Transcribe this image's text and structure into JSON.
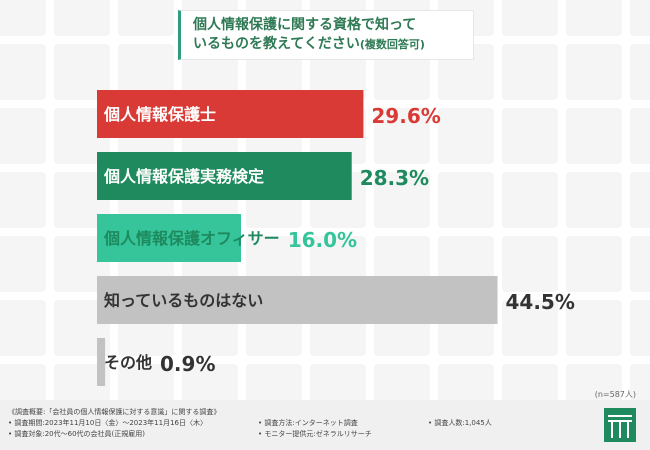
{
  "title": {
    "line1": "個人情報保護に関する資格で知って",
    "line2": "いるものを教えてください",
    "note": "(複数回答可)"
  },
  "chart_data": {
    "type": "bar",
    "orientation": "horizontal",
    "categories": [
      "個人情報保護士",
      "個人情報保護実務検定",
      "個人情報保護オフィサー",
      "知っているものはない",
      "その他"
    ],
    "values": [
      29.6,
      28.3,
      16.0,
      44.5,
      0.9
    ],
    "value_labels": [
      "29.6%",
      "28.3%",
      "16.0%",
      "44.5%",
      "0.9%"
    ],
    "colors": [
      "#d93a35",
      "#1e8a5e",
      "#36c49a",
      "#c2c2c2",
      "#c2c2c2"
    ],
    "label_colors": [
      "#ffffff",
      "#ffffff",
      "#1e8a5e",
      "#333333",
      "#333333"
    ],
    "value_colors": [
      "#d93a35",
      "#1e8a5e",
      "#36c49a",
      "#333333",
      "#333333"
    ],
    "xlim": [
      0,
      50
    ],
    "grid": false,
    "legend": "none"
  },
  "sample_note": "(n=587人)",
  "footer": {
    "overview": "《調査概要:「会社員の個人情報保護に対する意識」に関する調査》",
    "period": "• 調査期間:2023年11月10日〈金〉～2023年11月16日〈木〉",
    "method": "• 調査方法:インターネット調査",
    "count": "• 調査人数:1,045人",
    "target": "• 調査対象:20代～60代の会社員(正規雇用)",
    "provider": "• モニター提供元:ゼネラルリサーチ"
  },
  "colors": {
    "brand": "#1e8a5e"
  },
  "icons": {
    "logo": "company-logo-icon"
  }
}
